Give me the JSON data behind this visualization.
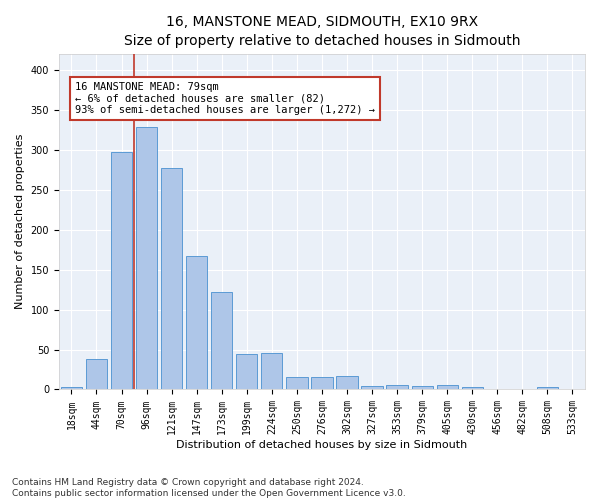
{
  "title": "16, MANSTONE MEAD, SIDMOUTH, EX10 9RX",
  "subtitle": "Size of property relative to detached houses in Sidmouth",
  "xlabel": "Distribution of detached houses by size in Sidmouth",
  "ylabel": "Number of detached properties",
  "bar_labels": [
    "18sqm",
    "44sqm",
    "70sqm",
    "96sqm",
    "121sqm",
    "147sqm",
    "173sqm",
    "199sqm",
    "224sqm",
    "250sqm",
    "276sqm",
    "302sqm",
    "327sqm",
    "353sqm",
    "379sqm",
    "405sqm",
    "430sqm",
    "456sqm",
    "482sqm",
    "508sqm",
    "533sqm"
  ],
  "bar_values": [
    3,
    38,
    297,
    328,
    277,
    167,
    122,
    44,
    46,
    15,
    16,
    17,
    4,
    5,
    4,
    5,
    3,
    1,
    0,
    3,
    1
  ],
  "bar_color": "#aec6e8",
  "bar_edge_color": "#5b9bd5",
  "vline_color": "#c0392b",
  "annotation_text": "16 MANSTONE MEAD: 79sqm\n← 6% of detached houses are smaller (82)\n93% of semi-detached houses are larger (1,272) →",
  "annotation_box_color": "#ffffff",
  "annotation_box_edge": "#c0392b",
  "ylim": [
    0,
    420
  ],
  "yticks": [
    0,
    50,
    100,
    150,
    200,
    250,
    300,
    350,
    400
  ],
  "bg_color": "#eaf0f8",
  "footer": "Contains HM Land Registry data © Crown copyright and database right 2024.\nContains public sector information licensed under the Open Government Licence v3.0.",
  "title_fontsize": 10,
  "xlabel_fontsize": 8,
  "ylabel_fontsize": 8,
  "tick_fontsize": 7,
  "annot_fontsize": 7.5,
  "footer_fontsize": 6.5
}
